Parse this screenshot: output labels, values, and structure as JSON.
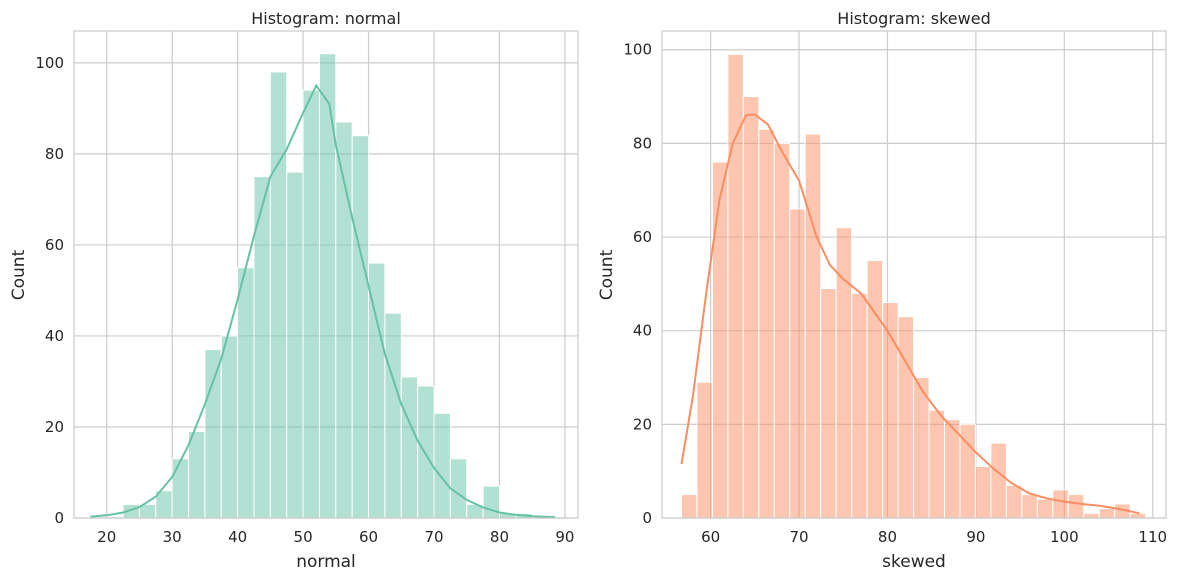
{
  "chart_data": [
    {
      "type": "histogram",
      "title": "Histogram: normal",
      "xlabel": "normal",
      "ylabel": "Count",
      "xlim": [
        15,
        92
      ],
      "ylim": [
        0,
        107
      ],
      "xticks": [
        20,
        30,
        40,
        50,
        60,
        70,
        80,
        90
      ],
      "yticks": [
        0,
        20,
        40,
        60,
        80,
        100
      ],
      "grid": true,
      "color": "#66c2a5",
      "bin_edges": [
        17.5,
        20.0,
        22.5,
        25.0,
        27.5,
        30.0,
        32.5,
        35.0,
        37.5,
        40.0,
        42.5,
        45.0,
        47.5,
        50.0,
        52.5,
        55.0,
        57.5,
        60.0,
        62.5,
        65.0,
        67.5,
        70.0,
        72.5,
        75.0,
        77.5,
        80.0,
        82.5,
        85.0,
        87.5,
        90.0
      ],
      "counts": [
        0,
        0,
        3,
        3,
        6,
        13,
        19,
        37,
        40,
        55,
        75,
        98,
        76,
        94,
        102,
        87,
        84,
        56,
        45,
        31,
        29,
        23,
        13,
        3,
        7,
        1,
        1,
        0,
        0
      ],
      "kde": [
        [
          17.5,
          0.3
        ],
        [
          20,
          0.6
        ],
        [
          22.5,
          1.2
        ],
        [
          25,
          2.4
        ],
        [
          27.5,
          4.7
        ],
        [
          30,
          9
        ],
        [
          32.5,
          16
        ],
        [
          35,
          25
        ],
        [
          37.5,
          35
        ],
        [
          40,
          48
        ],
        [
          42.5,
          62
        ],
        [
          45,
          75
        ],
        [
          47.5,
          81
        ],
        [
          50,
          89
        ],
        [
          52,
          95
        ],
        [
          54,
          91
        ],
        [
          55,
          82
        ],
        [
          57.5,
          66
        ],
        [
          60,
          51
        ],
        [
          62.5,
          36
        ],
        [
          65,
          25
        ],
        [
          67.5,
          17
        ],
        [
          70,
          11
        ],
        [
          72.5,
          6.5
        ],
        [
          75,
          4
        ],
        [
          77.5,
          2.3
        ],
        [
          80,
          1.2
        ],
        [
          82.5,
          0.7
        ],
        [
          85,
          0.4
        ],
        [
          88.5,
          0.2
        ]
      ]
    },
    {
      "type": "histogram",
      "title": "Histogram: skewed",
      "xlabel": "skewed",
      "ylabel": "Count",
      "xlim": [
        54.5,
        111.5
      ],
      "ylim": [
        0,
        104
      ],
      "xticks": [
        60,
        70,
        80,
        90,
        100,
        110
      ],
      "yticks": [
        0,
        20,
        40,
        60,
        80,
        100
      ],
      "grid": true,
      "color": "#fc8d62",
      "bin_edges": [
        56.7,
        58.45,
        60.2,
        61.95,
        63.7,
        65.45,
        67.2,
        68.95,
        70.7,
        72.45,
        74.2,
        75.95,
        77.7,
        79.45,
        81.2,
        82.95,
        84.7,
        86.45,
        88.2,
        89.95,
        91.7,
        93.45,
        95.2,
        96.95,
        98.7,
        100.45,
        102.2,
        103.95,
        105.7,
        107.45,
        109.2
      ],
      "counts": [
        5,
        29,
        76,
        99,
        90,
        83,
        80,
        66,
        82,
        49,
        62,
        48,
        55,
        46,
        43,
        30,
        23,
        21,
        20,
        11,
        16,
        7,
        5,
        4,
        6,
        5,
        1,
        2,
        3,
        1
      ],
      "kde": [
        [
          56.7,
          11.5
        ],
        [
          58,
          26
        ],
        [
          59.5,
          48
        ],
        [
          61,
          68
        ],
        [
          62.5,
          80
        ],
        [
          64,
          86
        ],
        [
          65,
          86.2
        ],
        [
          66.5,
          84
        ],
        [
          68,
          78.5
        ],
        [
          70,
          72
        ],
        [
          72,
          60
        ],
        [
          73.5,
          54
        ],
        [
          75,
          51
        ],
        [
          77,
          48
        ],
        [
          78.5,
          44
        ],
        [
          80,
          40
        ],
        [
          82,
          33.5
        ],
        [
          84,
          27
        ],
        [
          86,
          22
        ],
        [
          88,
          18
        ],
        [
          90,
          14
        ],
        [
          92,
          10.5
        ],
        [
          94,
          7.5
        ],
        [
          96,
          5.3
        ],
        [
          98,
          4.2
        ],
        [
          100,
          3.5
        ],
        [
          102,
          3.0
        ],
        [
          104,
          2.6
        ],
        [
          106,
          2.0
        ],
        [
          108.5,
          1.0
        ]
      ]
    }
  ]
}
